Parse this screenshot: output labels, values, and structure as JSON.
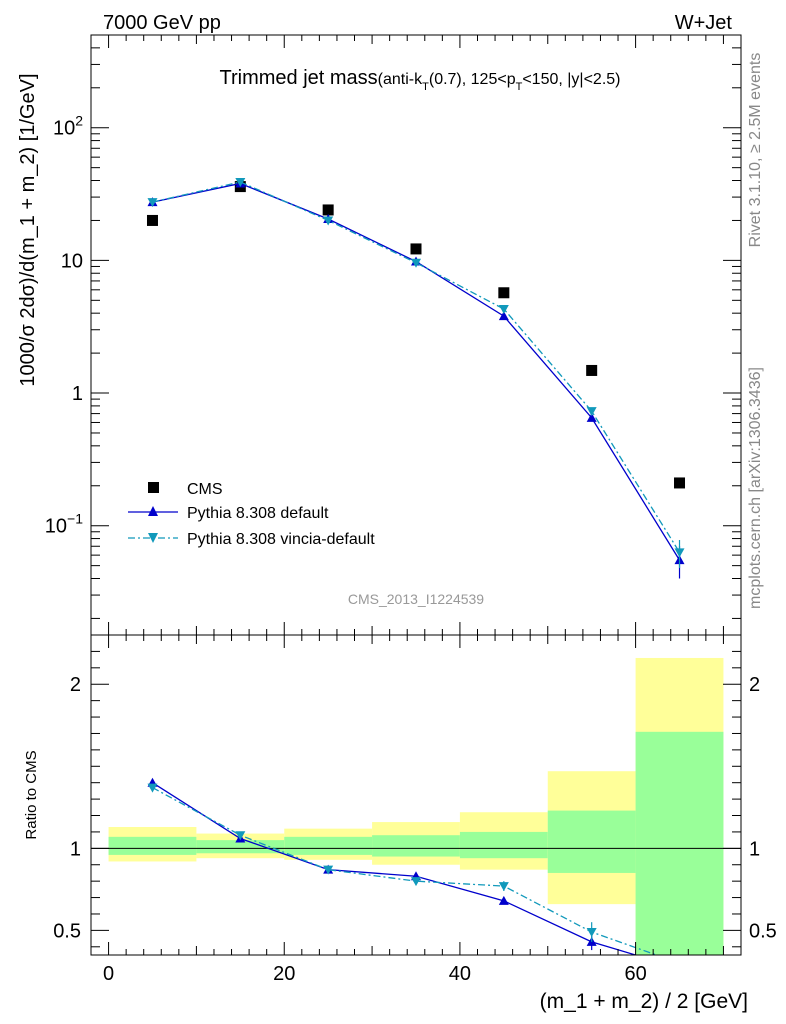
{
  "header": {
    "left": "7000 GeV pp",
    "right": "W+Jet"
  },
  "title": {
    "main": "Trimmed jet mass",
    "detail_prefix": "(anti-k",
    "detail_sub1": "T",
    "detail_mid": "(0.7), 125<p",
    "detail_sub2": "T",
    "detail_suffix": "<150, |y|<2.5)"
  },
  "side_labels": {
    "rivet": "Rivet 3.1.10, ≥ 2.5M events",
    "mcplots": "mcplots.cern.ch [arXiv:1306.3436]"
  },
  "watermark": "CMS_2013_I1224539",
  "legend": [
    {
      "label": "CMS"
    },
    {
      "label": "Pythia 8.308 default"
    },
    {
      "label": "Pythia 8.308 vincia-default"
    }
  ],
  "colors": {
    "data": "#000000",
    "default": "#0000cc",
    "vincia": "#1199bb",
    "band_inner": "#99ff99",
    "band_outer": "#ffff99"
  },
  "chart_data": [
    {
      "type": "scatter",
      "panel": "main",
      "ylabel": "1000/σ 2dσ)/d(m_1 + m_2) [1/GeV]",
      "yscale": "log",
      "ylim": [
        0.015,
        500
      ],
      "xlim": [
        -2,
        72
      ],
      "yticks": [
        {
          "value": 0.1,
          "base": "10",
          "exp": "−1"
        },
        {
          "value": 1,
          "label": "1"
        },
        {
          "value": 10,
          "label": "10"
        },
        {
          "value": 100,
          "base": "10",
          "exp": "2"
        }
      ],
      "series": [
        {
          "name": "CMS",
          "x": [
            5,
            15,
            25,
            35,
            45,
            55,
            65
          ],
          "y": [
            20,
            36,
            24,
            12.2,
            5.7,
            1.48,
            0.21
          ]
        },
        {
          "name": "Pythia 8.308 default",
          "x": [
            5,
            15,
            25,
            35,
            45,
            55,
            65
          ],
          "y": [
            27.5,
            38,
            20.5,
            9.8,
            3.8,
            0.65,
            0.055
          ],
          "yerr": [
            0,
            0,
            0,
            0,
            0,
            0,
            0.015
          ]
        },
        {
          "name": "Pythia 8.308 vincia-default",
          "x": [
            5,
            15,
            25,
            35,
            45,
            55,
            65
          ],
          "y": [
            27.5,
            39,
            20,
            9.6,
            4.3,
            0.73,
            0.063
          ],
          "yerr": [
            0,
            0,
            0,
            0,
            0,
            0,
            0.015
          ]
        }
      ]
    },
    {
      "type": "scatter",
      "panel": "ratio",
      "ylabel": "Ratio to CMS",
      "xlabel": "(m_1 + m_2) / 2 [GeV]",
      "xlim": [
        -2,
        72
      ],
      "ylim": [
        0.35,
        2.3
      ],
      "xticks": [
        0,
        20,
        40,
        60
      ],
      "yticks": [
        0.5,
        1,
        2
      ],
      "bands": {
        "x_edges": [
          0,
          10,
          20,
          30,
          40,
          50,
          60,
          70
        ],
        "inner_lo": [
          0.96,
          0.97,
          0.96,
          0.95,
          0.94,
          0.85,
          0.35
        ],
        "inner_hi": [
          1.07,
          1.05,
          1.07,
          1.08,
          1.1,
          1.23,
          1.71
        ],
        "outer_lo": [
          0.92,
          0.94,
          0.93,
          0.9,
          0.87,
          0.66,
          0.35
        ],
        "outer_hi": [
          1.13,
          1.09,
          1.12,
          1.16,
          1.22,
          1.47,
          2.16
        ]
      },
      "series": [
        {
          "name": "Pythia 8.308 default",
          "x": [
            5,
            15,
            25,
            35,
            45,
            55,
            65
          ],
          "y": [
            1.4,
            1.06,
            0.87,
            0.83,
            0.68,
            0.43,
            0.27
          ],
          "yerr": [
            0.02,
            0.02,
            0.01,
            0.01,
            0.02,
            0.05,
            0.08
          ]
        },
        {
          "name": "Pythia 8.308 vincia-default",
          "x": [
            5,
            15,
            25,
            35,
            45,
            55,
            65
          ],
          "y": [
            1.37,
            1.08,
            0.87,
            0.8,
            0.77,
            0.49,
            0.3
          ],
          "yerr": [
            0.02,
            0.02,
            0.01,
            0.01,
            0.03,
            0.06,
            0.08
          ]
        }
      ]
    }
  ]
}
